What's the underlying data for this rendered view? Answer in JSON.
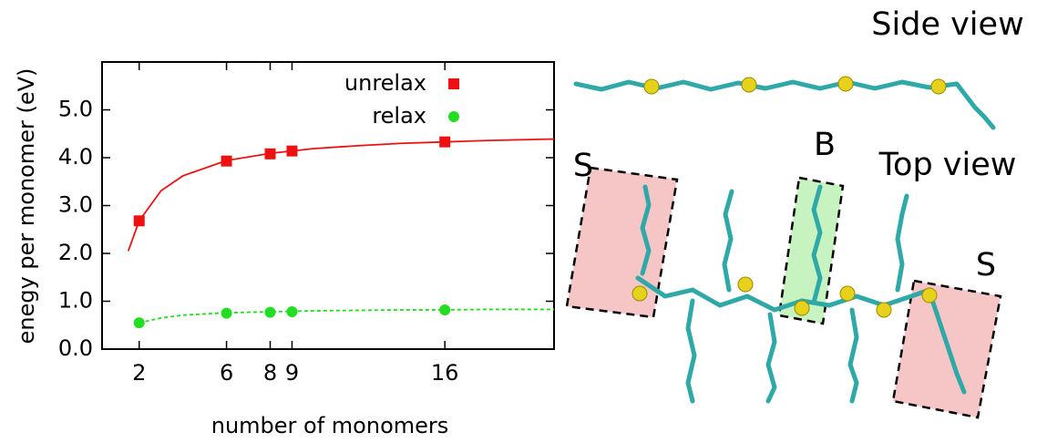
{
  "chart_data": {
    "type": "scatter",
    "xlabel": "number of monomers",
    "ylabel": "enegy per monomer (eV)",
    "xlim": [
      0.3,
      21
    ],
    "ylim": [
      0,
      6
    ],
    "xticks": [
      2,
      6,
      8,
      9,
      16
    ],
    "yticks": [
      {
        "value": 0,
        "label": "0.0"
      },
      {
        "value": 1,
        "label": "1.0"
      },
      {
        "value": 2,
        "label": "2.0"
      },
      {
        "value": 3,
        "label": "3.0"
      },
      {
        "value": 4,
        "label": "4.0"
      },
      {
        "value": 5,
        "label": "5.0"
      }
    ],
    "legend": "upper right",
    "series": [
      {
        "name": "unrelax",
        "color": "#ee1111",
        "marker": "square",
        "x": [
          2,
          6,
          8,
          9,
          16
        ],
        "values": [
          2.68,
          3.93,
          4.08,
          4.14,
          4.33
        ]
      },
      {
        "name": "relax",
        "color": "#22dd22",
        "marker": "circle",
        "x": [
          2,
          6,
          8,
          9,
          16
        ],
        "values": [
          0.55,
          0.75,
          0.77,
          0.78,
          0.82
        ]
      }
    ],
    "fits": [
      {
        "color": "#ee1111",
        "dashed": false,
        "x": [
          1.5,
          2,
          3,
          4,
          6,
          8,
          10,
          12,
          14,
          16,
          18,
          21
        ],
        "values": [
          2.05,
          2.68,
          3.31,
          3.62,
          3.94,
          4.09,
          4.19,
          4.25,
          4.3,
          4.33,
          4.36,
          4.39
        ]
      },
      {
        "color": "#22dd22",
        "dashed": true,
        "x": [
          2,
          3,
          4,
          6,
          8,
          10,
          12,
          14,
          16,
          18,
          21
        ],
        "values": [
          0.55,
          0.65,
          0.71,
          0.76,
          0.78,
          0.8,
          0.81,
          0.82,
          0.82,
          0.83,
          0.83
        ]
      }
    ]
  },
  "figure": {
    "side_title": "Side view",
    "top_title": "Top view",
    "labels": [
      "S",
      "B",
      "S"
    ]
  }
}
